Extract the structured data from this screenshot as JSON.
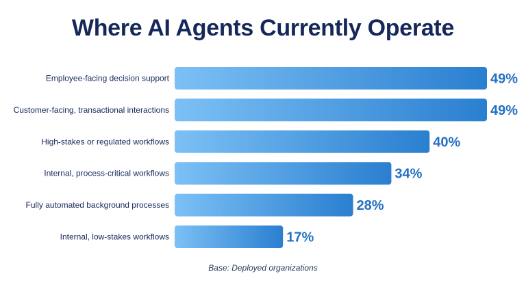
{
  "chart_data": {
    "type": "bar",
    "orientation": "horizontal",
    "title": "Where AI Agents Currently Operate",
    "categories": [
      "Employee-facing decision support",
      "Customer-facing, transactional interactions",
      "High-stakes or regulated workflows",
      "Internal, process-critical workflows",
      "Fully automated background processes",
      "Internal, low-stakes workflows"
    ],
    "values": [
      49,
      49,
      40,
      34,
      28,
      17
    ],
    "value_labels": [
      "49%",
      "49%",
      "40%",
      "34%",
      "28%",
      "17%"
    ],
    "unit": "%",
    "xlim": [
      0,
      49
    ],
    "grid": false,
    "legend": "none",
    "colors": {
      "bar_start": "#7cc0f5",
      "bar_end": "#2a7fd0",
      "value_text": "#2371c2",
      "label_text": "#16285a"
    },
    "footnote": "Base: Deployed organizations"
  }
}
